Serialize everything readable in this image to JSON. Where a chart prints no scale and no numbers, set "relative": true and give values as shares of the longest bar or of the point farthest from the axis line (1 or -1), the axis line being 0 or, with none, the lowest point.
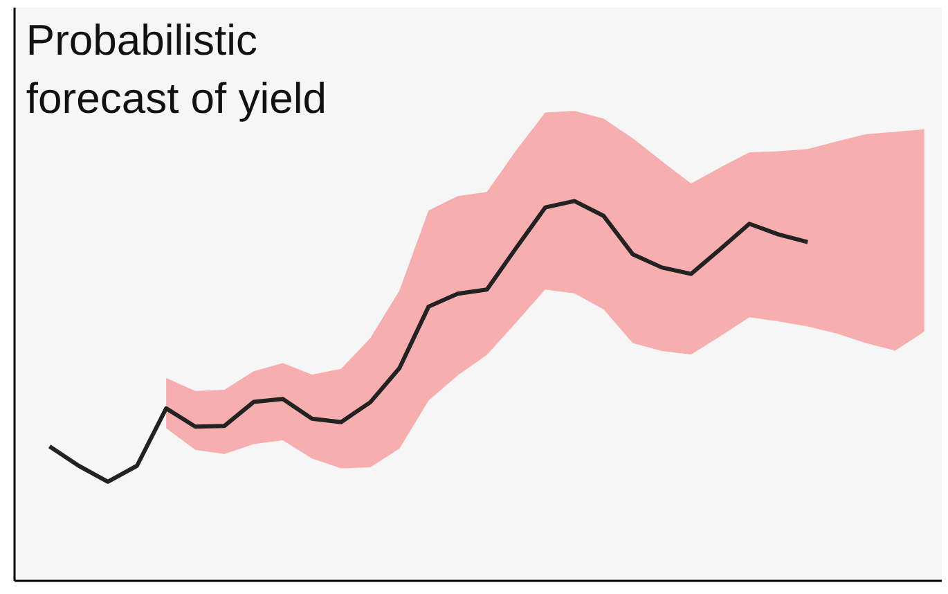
{
  "chart_data": {
    "type": "line",
    "title": "Probabilistic\nforecast of yield",
    "relative": true,
    "categories": [
      null,
      null,
      null,
      null,
      null,
      null,
      null,
      null,
      null,
      null,
      null,
      null,
      null,
      null,
      null,
      null,
      null,
      null,
      null,
      null,
      null,
      null,
      null,
      null,
      null,
      null,
      null,
      null,
      null,
      null,
      null
    ],
    "series": [
      {
        "color": "#f7a1a1",
        "values": [
          null,
          null,
          null,
          null,
          null,
          null,
          null,
          null,
          null,
          null,
          null,
          null,
          null,
          null,
          null,
          null,
          null,
          null,
          null,
          null,
          null,
          null,
          null,
          null,
          null,
          null,
          null,
          null,
          null,
          null,
          null
        ],
        "lower": [
          null,
          null,
          null,
          null,
          0.402,
          0.345,
          0.334,
          0.36,
          0.37,
          0.322,
          0.296,
          0.299,
          0.348,
          0.475,
          0.541,
          0.595,
          0.68,
          0.767,
          0.757,
          0.715,
          0.626,
          0.605,
          0.596,
          0.644,
          0.694,
          0.683,
          0.67,
          0.651,
          0.626,
          0.606,
          0.656
        ],
        "upper": [
          null,
          null,
          null,
          null,
          0.534,
          0.5,
          0.503,
          0.552,
          0.573,
          0.543,
          0.558,
          0.639,
          0.764,
          0.975,
          1.013,
          1.024,
          1.133,
          1.233,
          1.237,
          1.217,
          1.165,
          1.105,
          1.046,
          1.088,
          1.128,
          1.131,
          1.137,
          1.157,
          1.176,
          1.182,
          1.189
        ]
      },
      {
        "color": "#222222",
        "values": [
          0.354,
          0.303,
          0.261,
          0.303,
          0.454,
          0.406,
          0.408,
          0.471,
          0.479,
          0.427,
          0.418,
          0.47,
          0.56,
          0.722,
          0.756,
          0.767,
          0.876,
          0.983,
          1,
          0.961,
          0.86,
          0.825,
          0.808,
          0.873,
          0.94,
          0.912,
          0.892,
          null,
          null,
          null,
          null
        ]
      }
    ]
  }
}
